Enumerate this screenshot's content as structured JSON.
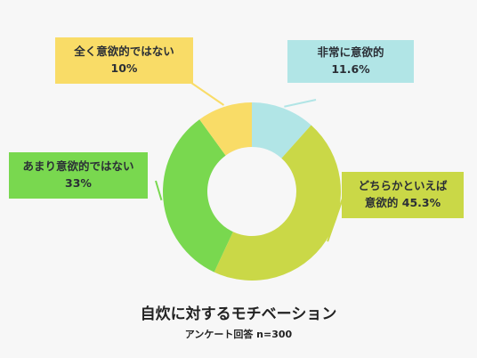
{
  "chart_data": {
    "type": "pie",
    "title": "自炊に対するモチベーション",
    "subtitle": "アンケート回答 n=300",
    "categories": [
      "非常に意欲的",
      "どちらかといえば意欲的",
      "あまり意欲的ではない",
      "全く意欲的ではない"
    ],
    "values": [
      11.6,
      45.3,
      33,
      10
    ],
    "colors": [
      "#b1e5e6",
      "#cad847",
      "#79d84f",
      "#f9dc67"
    ],
    "labels": [
      {
        "line1": "非常に意欲的",
        "line2": "11.6%"
      },
      {
        "line1": "どちらかといえば",
        "line2": "意欲的  45.3%"
      },
      {
        "line1": "あまり意欲的ではない",
        "line2": "33%"
      },
      {
        "line1": "全く意欲的ではない",
        "line2": "10%"
      }
    ],
    "donut": true,
    "start": "top",
    "direction": "clockwise"
  }
}
